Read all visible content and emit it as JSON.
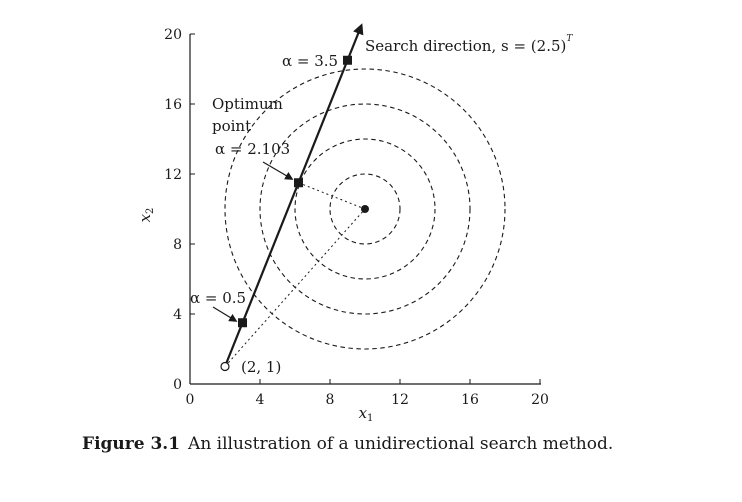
{
  "chart_data": {
    "type": "scatter",
    "xlim": [
      0,
      20
    ],
    "ylim": [
      0,
      20
    ],
    "x_ticks": [
      "0",
      "4",
      "8",
      "12",
      "16",
      "20"
    ],
    "y_ticks": [
      "0",
      "4",
      "8",
      "12",
      "16",
      "20"
    ],
    "xlabel": {
      "main": "x",
      "sub": "1"
    },
    "ylabel": {
      "main": "x",
      "sub": "2"
    },
    "center": [
      10,
      10
    ],
    "contour_radii": [
      2,
      4,
      6,
      8
    ],
    "start": {
      "x": 2,
      "y": 1,
      "label": "(2, 1)"
    },
    "direction": [
      2,
      5
    ],
    "points": [
      {
        "alpha": 0.5,
        "x": 3,
        "y": 3.5,
        "label": "α = 0.5"
      },
      {
        "alpha": 2.103,
        "x": 6.2,
        "y": 11.5,
        "label": "α = 2.103"
      },
      {
        "alpha": 3.5,
        "x": 9,
        "y": 18.5,
        "label": "α = 3.5"
      }
    ],
    "optimum_label": [
      "Optimum",
      "point"
    ],
    "direction_label": "Search direction, s = (2.5)",
    "direction_superscript": "T"
  },
  "caption": {
    "label": "Figure 3.1",
    "text": "An illustration of a unidirectional search method."
  }
}
